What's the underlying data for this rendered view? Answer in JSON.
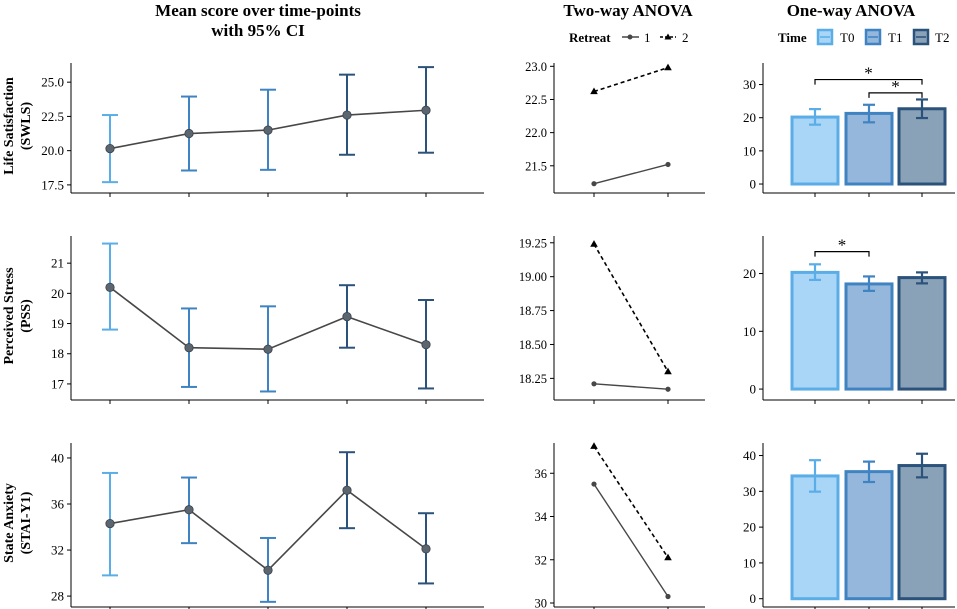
{
  "headers": {
    "mean_line1": "Mean score over time-points",
    "mean_line2": "with 95% CI",
    "two_way": "Two-way ANOVA",
    "one_way": "One-way ANOVA"
  },
  "legends": {
    "retreat": {
      "title": "Retreat",
      "items": [
        "1",
        "2"
      ]
    },
    "time": {
      "title": "Time",
      "items": [
        "T0",
        "T1",
        "T2"
      ]
    }
  },
  "colors": {
    "c0": "#5aade6",
    "c1": "#3f83c2",
    "c2": "#2b527a",
    "line": "#474747",
    "point": "#5c6670",
    "bar_t0": "#a9d5f7",
    "bar_t1": "#94b7db",
    "bar_t2": "#8aa2b8"
  },
  "chart_data": [
    {
      "id": "mean-swls",
      "type": "line",
      "ylabel": [
        "Life Satisfaction",
        "(SWLS)"
      ],
      "ylim": [
        17.2,
        26.4
      ],
      "yticks": [
        "17.5",
        "20.0",
        "22.5",
        "25.0"
      ],
      "points": [
        {
          "x": 1,
          "y": 20.15,
          "lo": 17.7,
          "hi": 22.6
        },
        {
          "x": 2,
          "y": 21.25,
          "lo": 18.55,
          "hi": 23.95
        },
        {
          "x": 3,
          "y": 21.5,
          "lo": 18.6,
          "hi": 24.45
        },
        {
          "x": 4,
          "y": 22.6,
          "lo": 19.7,
          "hi": 25.55
        },
        {
          "x": 5,
          "y": 22.95,
          "lo": 19.85,
          "hi": 26.1
        }
      ]
    },
    {
      "id": "mean-pss",
      "type": "line",
      "ylabel": [
        "Perceived Stress",
        "(PSS)"
      ],
      "ylim": [
        16.6,
        21.9
      ],
      "yticks": [
        "17",
        "18",
        "19",
        "20",
        "21"
      ],
      "points": [
        {
          "x": 1,
          "y": 20.2,
          "lo": 18.8,
          "hi": 21.65
        },
        {
          "x": 2,
          "y": 18.2,
          "lo": 16.9,
          "hi": 19.5
        },
        {
          "x": 3,
          "y": 18.15,
          "lo": 16.75,
          "hi": 19.57
        },
        {
          "x": 4,
          "y": 19.23,
          "lo": 18.2,
          "hi": 20.27
        },
        {
          "x": 5,
          "y": 18.3,
          "lo": 16.85,
          "hi": 19.78
        }
      ]
    },
    {
      "id": "mean-stai",
      "type": "line",
      "ylabel": [
        "State Anxiety",
        "(STAI-Y1)"
      ],
      "ylim": [
        27.4,
        41.3
      ],
      "yticks": [
        "28",
        "32",
        "36",
        "40"
      ],
      "points": [
        {
          "x": 1,
          "y": 34.3,
          "lo": 29.8,
          "hi": 38.7
        },
        {
          "x": 2,
          "y": 35.5,
          "lo": 32.6,
          "hi": 38.3
        },
        {
          "x": 3,
          "y": 30.25,
          "lo": 27.5,
          "hi": 33.05
        },
        {
          "x": 4,
          "y": 37.2,
          "lo": 33.9,
          "hi": 40.5
        },
        {
          "x": 5,
          "y": 32.1,
          "lo": 29.1,
          "hi": 35.2
        }
      ]
    },
    {
      "id": "twoway-swls",
      "type": "line",
      "ylim": [
        21.15,
        23.05
      ],
      "yticks": [
        "21.5",
        "22.0",
        "22.5",
        "23.0"
      ],
      "series": [
        {
          "name": "1",
          "values": [
            21.23,
            21.52
          ]
        },
        {
          "name": "2",
          "values": [
            22.62,
            22.98
          ]
        }
      ]
    },
    {
      "id": "twoway-pss",
      "type": "line",
      "ylim": [
        18.12,
        19.3
      ],
      "yticks": [
        "18.25",
        "18.50",
        "18.75",
        "19.00",
        "19.25"
      ],
      "series": [
        {
          "name": "1",
          "values": [
            18.21,
            18.17
          ]
        },
        {
          "name": "2",
          "values": [
            19.24,
            18.3
          ]
        }
      ]
    },
    {
      "id": "twoway-stai",
      "type": "line",
      "ylim": [
        30.0,
        37.4
      ],
      "yticks": [
        "30",
        "32",
        "34",
        "36"
      ],
      "series": [
        {
          "name": "1",
          "values": [
            35.5,
            30.3
          ]
        },
        {
          "name": "2",
          "values": [
            37.25,
            32.1
          ]
        }
      ]
    },
    {
      "id": "oneway-swls",
      "type": "bar",
      "categories": [
        "T0",
        "T1",
        "T2"
      ],
      "ylim": [
        -1.5,
        36.5
      ],
      "yticks": [
        "0",
        "10",
        "20",
        "30"
      ],
      "values": [
        20.2,
        21.3,
        22.7
      ],
      "errors": [
        [
          17.9,
          22.6
        ],
        [
          18.6,
          23.9
        ],
        [
          19.9,
          25.5
        ]
      ],
      "sig": [
        {
          "from": 0,
          "to": 2,
          "y": 31.5,
          "label": "*"
        },
        {
          "from": 1,
          "to": 2,
          "y": 27.5,
          "label": "*"
        }
      ]
    },
    {
      "id": "oneway-pss",
      "type": "bar",
      "categories": [
        "T0",
        "T1",
        "T2"
      ],
      "ylim": [
        -1.2,
        26.5
      ],
      "yticks": [
        "0",
        "10",
        "20"
      ],
      "values": [
        20.2,
        18.2,
        19.3
      ],
      "errors": [
        [
          18.9,
          21.6
        ],
        [
          17.0,
          19.5
        ],
        [
          18.3,
          20.2
        ]
      ],
      "sig": [
        {
          "from": 0,
          "to": 1,
          "y": 23.8,
          "label": "*"
        }
      ]
    },
    {
      "id": "oneway-stai",
      "type": "bar",
      "categories": [
        "T0",
        "T1",
        "T2"
      ],
      "ylim": [
        -1.2,
        43.5
      ],
      "yticks": [
        "0",
        "10",
        "20",
        "30",
        "40"
      ],
      "values": [
        34.3,
        35.5,
        37.2
      ],
      "errors": [
        [
          29.9,
          38.7
        ],
        [
          32.6,
          38.3
        ],
        [
          33.9,
          40.5
        ]
      ],
      "sig": []
    }
  ]
}
